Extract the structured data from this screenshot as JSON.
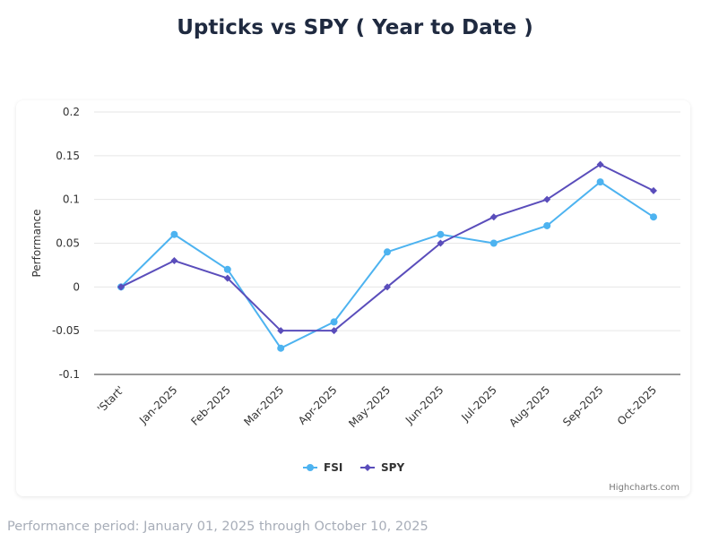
{
  "page": {
    "title": "Upticks vs SPY ( Year to Date )",
    "footer": "Performance period: January 01, 2025 through October 10, 2025",
    "credits": "Highcharts.com"
  },
  "chart_data": {
    "type": "line",
    "title": "Upticks vs SPY ( Year to Date )",
    "xlabel": "",
    "ylabel": "Performance",
    "categories": [
      "'Start'",
      "Jan-2025",
      "Feb-2025",
      "Mar-2025",
      "Apr-2025",
      "May-2025",
      "Jun-2025",
      "Jul-2025",
      "Aug-2025",
      "Sep-2025",
      "Oct-2025"
    ],
    "ylim": [
      -0.1,
      0.2
    ],
    "yticks": [
      -0.1,
      -0.05,
      0,
      0.05,
      0.1,
      0.15,
      0.2
    ],
    "ytick_labels": [
      "-0.1",
      "-0.05",
      "0",
      "0.05",
      "0.1",
      "0.15",
      "0.2"
    ],
    "grid": true,
    "legend": "bottom-center",
    "series": [
      {
        "name": "FSI",
        "color": "#4db3f0",
        "marker": "circle",
        "values": [
          0,
          0.06,
          0.02,
          -0.07,
          -0.04,
          0.04,
          0.06,
          0.05,
          0.07,
          0.12,
          0.08
        ]
      },
      {
        "name": "SPY",
        "color": "#5a4dbb",
        "marker": "diamond",
        "values": [
          0,
          0.03,
          0.01,
          -0.05,
          -0.05,
          0,
          0.05,
          0.08,
          0.1,
          0.14,
          0.11
        ]
      }
    ]
  }
}
